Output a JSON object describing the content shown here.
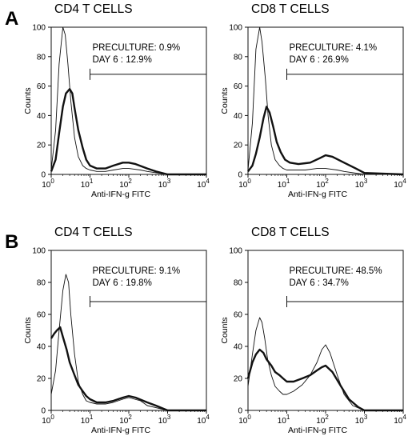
{
  "figure": {
    "panel_labels": [
      "A",
      "B"
    ]
  },
  "chart_data": [
    {
      "type": "histogram",
      "panel": "A",
      "title": "CD4  T CELLS",
      "xlabel": "Anti-IFN-g FITC",
      "ylabel": "Counts",
      "x_scale": "log",
      "xlim": [
        1,
        10000
      ],
      "ylim": [
        0,
        100
      ],
      "x_ticks": [
        1,
        10,
        100,
        1000,
        10000
      ],
      "x_tick_labels": [
        {
          "base": "10",
          "exp": "0"
        },
        {
          "base": "10",
          "exp": "1"
        },
        {
          "base": "10",
          "exp": "2"
        },
        {
          "base": "10",
          "exp": "3"
        },
        {
          "base": "10",
          "exp": "4"
        }
      ],
      "y_ticks": [
        0,
        20,
        40,
        60,
        80,
        100
      ],
      "annotation": [
        "PRECULTURE: 0.9%",
        "DAY 6 : 12.9%"
      ],
      "gate": [
        10,
        10000
      ],
      "series": [
        {
          "style": "thin",
          "x": [
            1,
            1.3,
            1.6,
            2,
            2.3,
            2.7,
            3.2,
            4,
            5,
            6.5,
            8,
            10,
            15,
            25,
            40,
            70,
            100,
            200,
            300,
            1000,
            10000
          ],
          "values": [
            3,
            30,
            75,
            100,
            95,
            75,
            50,
            25,
            12,
            6,
            4,
            3,
            2,
            2,
            3,
            4,
            4,
            3,
            2,
            0,
            0
          ]
        },
        {
          "style": "thick",
          "x": [
            1,
            1.3,
            1.6,
            2,
            2.4,
            3,
            3.5,
            4,
            5,
            6.5,
            8,
            10,
            15,
            25,
            40,
            70,
            100,
            150,
            300,
            500,
            1000,
            10000
          ],
          "values": [
            2,
            10,
            28,
            46,
            55,
            58,
            55,
            45,
            30,
            18,
            10,
            6,
            4,
            4,
            6,
            8,
            8,
            7,
            4,
            2,
            0,
            0
          ]
        }
      ]
    },
    {
      "type": "histogram",
      "panel": "A",
      "title": "CD8  T CELLS",
      "xlabel": "Anti-IFN-g FITC",
      "ylabel": "Counts",
      "x_scale": "log",
      "xlim": [
        1,
        10000
      ],
      "ylim": [
        0,
        100
      ],
      "x_ticks": [
        1,
        10,
        100,
        1000,
        10000
      ],
      "x_tick_labels": [
        {
          "base": "10",
          "exp": "0"
        },
        {
          "base": "10",
          "exp": "1"
        },
        {
          "base": "10",
          "exp": "2"
        },
        {
          "base": "10",
          "exp": "3"
        },
        {
          "base": "10",
          "exp": "4"
        }
      ],
      "y_ticks": [
        0,
        20,
        40,
        60,
        80,
        100
      ],
      "annotation": [
        "PRECULTURE: 4.1%",
        "DAY 6 : 26.9%"
      ],
      "gate": [
        10,
        10000
      ],
      "series": [
        {
          "style": "thin",
          "x": [
            1,
            1.3,
            1.6,
            2,
            2.3,
            2.8,
            3.3,
            4,
            5,
            6.5,
            8,
            10,
            15,
            30,
            60,
            100,
            200,
            300,
            1000,
            10000
          ],
          "values": [
            3,
            35,
            85,
            100,
            90,
            65,
            40,
            20,
            10,
            6,
            4,
            3,
            3,
            3,
            4,
            4,
            3,
            2,
            0,
            0
          ]
        },
        {
          "style": "thick",
          "x": [
            1,
            1.3,
            1.6,
            2,
            2.5,
            3,
            3.6,
            4.5,
            5.5,
            7,
            9,
            12,
            20,
            40,
            70,
            100,
            150,
            300,
            600,
            1000,
            10000
          ],
          "values": [
            2,
            6,
            14,
            25,
            38,
            46,
            42,
            32,
            22,
            15,
            10,
            8,
            7,
            8,
            11,
            13,
            12,
            8,
            4,
            1,
            0
          ]
        }
      ]
    },
    {
      "type": "histogram",
      "panel": "B",
      "title": "CD4  T CELLS",
      "xlabel": "Anti-IFN-g FITC",
      "ylabel": "Counts",
      "x_scale": "log",
      "xlim": [
        1,
        10000
      ],
      "ylim": [
        0,
        100
      ],
      "x_ticks": [
        1,
        10,
        100,
        1000,
        10000
      ],
      "x_tick_labels": [
        {
          "base": "10",
          "exp": "0"
        },
        {
          "base": "10",
          "exp": "1"
        },
        {
          "base": "10",
          "exp": "2"
        },
        {
          "base": "10",
          "exp": "3"
        },
        {
          "base": "10",
          "exp": "4"
        }
      ],
      "y_ticks": [
        0,
        20,
        40,
        60,
        80,
        100
      ],
      "annotation": [
        "PRECULTURE: 9.1%",
        "DAY 6 : 19.8%"
      ],
      "gate": [
        10,
        10000
      ],
      "series": [
        {
          "style": "thin",
          "x": [
            1,
            1.3,
            1.6,
            2,
            2.4,
            2.8,
            3.2,
            4,
            5,
            6.5,
            8,
            10,
            15,
            25,
            40,
            70,
            100,
            200,
            300,
            1000,
            10000
          ],
          "values": [
            10,
            25,
            50,
            75,
            85,
            80,
            60,
            35,
            18,
            10,
            6,
            5,
            4,
            4,
            5,
            7,
            8,
            6,
            3,
            0,
            0
          ]
        },
        {
          "style": "thick",
          "x": [
            1,
            1.2,
            1.4,
            1.7,
            2,
            2.5,
            3,
            4,
            5,
            6.5,
            8,
            10,
            15,
            25,
            40,
            70,
            100,
            150,
            300,
            500,
            1000,
            10000
          ],
          "values": [
            45,
            48,
            50,
            52,
            46,
            38,
            30,
            22,
            16,
            12,
            9,
            7,
            5,
            5,
            6,
            8,
            9,
            8,
            5,
            3,
            0,
            0
          ]
        }
      ]
    },
    {
      "type": "histogram",
      "panel": "B",
      "title": "CD8 T CELLS",
      "xlabel": "Anti-IFN-g FITC",
      "ylabel": "Counts",
      "x_scale": "log",
      "xlim": [
        1,
        10000
      ],
      "ylim": [
        0,
        100
      ],
      "x_ticks": [
        1,
        10,
        100,
        1000,
        10000
      ],
      "x_tick_labels": [
        {
          "base": "10",
          "exp": "0"
        },
        {
          "base": "10",
          "exp": "1"
        },
        {
          "base": "10",
          "exp": "2"
        },
        {
          "base": "10",
          "exp": "3"
        },
        {
          "base": "10",
          "exp": "4"
        }
      ],
      "y_ticks": [
        0,
        20,
        40,
        60,
        80,
        100
      ],
      "annotation": [
        "PRECULTURE: 48.5%",
        "DAY 6 : 34.7%"
      ],
      "gate": [
        10,
        10000
      ],
      "series": [
        {
          "style": "thin",
          "x": [
            1,
            1.3,
            1.6,
            2,
            2.3,
            2.7,
            3.2,
            4,
            5,
            6.5,
            8,
            10,
            15,
            25,
            40,
            60,
            80,
            100,
            130,
            200,
            300,
            500,
            1000,
            10000
          ],
          "values": [
            15,
            35,
            50,
            58,
            55,
            45,
            32,
            22,
            15,
            12,
            10,
            10,
            12,
            16,
            22,
            30,
            38,
            41,
            36,
            22,
            10,
            3,
            0,
            0
          ]
        },
        {
          "style": "thick",
          "x": [
            1,
            1.3,
            1.6,
            2,
            2.5,
            3,
            4,
            5,
            6.5,
            8,
            10,
            15,
            25,
            40,
            60,
            80,
            100,
            150,
            250,
            400,
            700,
            1000,
            10000
          ],
          "values": [
            20,
            30,
            35,
            38,
            36,
            32,
            28,
            24,
            22,
            20,
            18,
            18,
            20,
            22,
            25,
            27,
            28,
            24,
            15,
            7,
            2,
            0,
            0
          ]
        }
      ]
    }
  ]
}
